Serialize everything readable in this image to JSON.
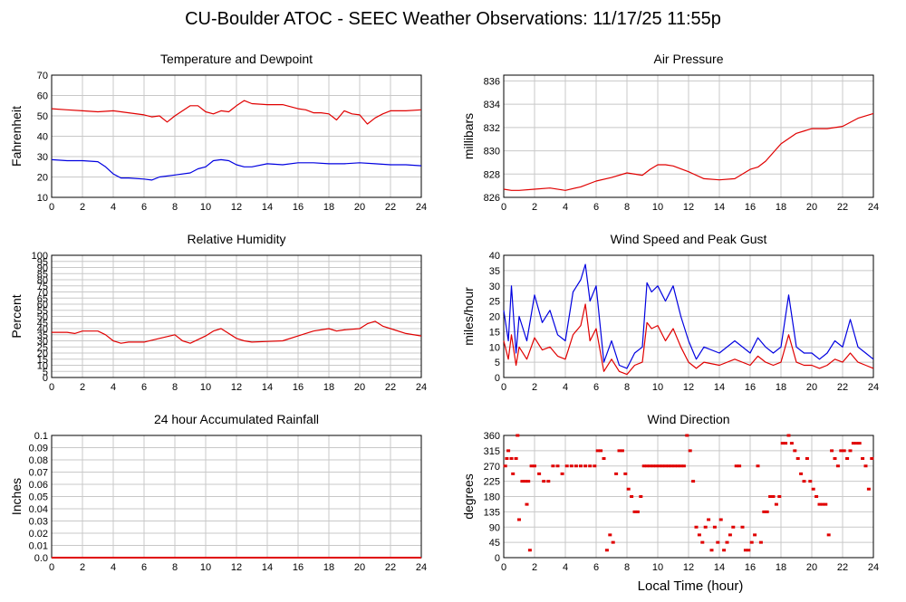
{
  "page_title": "CU-Boulder ATOC - SEEC Weather Observations: 11/17/25 11:55p",
  "x_axis_label": "Local Time (hour)",
  "chart_data": [
    {
      "type": "line",
      "title": "Temperature and Dewpoint",
      "ylabel": "Fahrenheit",
      "xlabel": "",
      "xlim": [
        0,
        24
      ],
      "ylim": [
        10,
        70
      ],
      "x_ticks": [
        0,
        2,
        4,
        6,
        8,
        10,
        12,
        14,
        16,
        18,
        20,
        22,
        24
      ],
      "y_ticks": [
        10,
        20,
        30,
        40,
        50,
        60,
        70
      ],
      "grid": true,
      "series": [
        {
          "color": "#e00000",
          "x": [
            0,
            1,
            2,
            3,
            4,
            5,
            6,
            6.5,
            7,
            7.5,
            8,
            9,
            9.5,
            10,
            10.5,
            11,
            11.5,
            12,
            12.5,
            13,
            14,
            15,
            16,
            16.5,
            17,
            17.5,
            18,
            18.5,
            19,
            19.5,
            20,
            20.5,
            21,
            21.5,
            22,
            23,
            24
          ],
          "y": [
            53.5,
            53,
            52.5,
            52,
            52.5,
            51.5,
            50.5,
            49.5,
            50,
            47,
            50,
            55,
            55,
            52,
            51,
            52.5,
            52,
            55,
            57.5,
            56,
            55.5,
            55.5,
            53.5,
            53,
            51.5,
            51.5,
            51,
            48,
            52.5,
            51,
            50.5,
            46,
            49,
            51,
            52.5,
            52.5,
            53
          ]
        },
        {
          "color": "#0000e0",
          "x": [
            0,
            1,
            2,
            3,
            3.5,
            4,
            4.5,
            5,
            6,
            6.5,
            7,
            8,
            9,
            9.5,
            10,
            10.5,
            11,
            11.5,
            12,
            12.5,
            13,
            14,
            15,
            16,
            17,
            18,
            19,
            20,
            21,
            22,
            23,
            24
          ],
          "y": [
            28.5,
            28,
            28,
            27.5,
            25,
            21.5,
            19.5,
            19.5,
            19,
            18.5,
            20,
            21,
            22,
            24,
            25,
            28,
            28.5,
            28,
            26,
            25,
            25,
            26.5,
            26,
            27,
            27,
            26.5,
            26.5,
            27,
            26.5,
            26,
            26,
            25.5
          ]
        }
      ]
    },
    {
      "type": "line",
      "title": "Air Pressure",
      "ylabel": "millibars",
      "xlabel": "",
      "xlim": [
        0,
        24
      ],
      "ylim": [
        826,
        836.5
      ],
      "x_ticks": [
        0,
        2,
        4,
        6,
        8,
        10,
        12,
        14,
        16,
        18,
        20,
        22,
        24
      ],
      "y_ticks": [
        826,
        828,
        830,
        832,
        834,
        836
      ],
      "grid": true,
      "series": [
        {
          "color": "#e00000",
          "x": [
            0,
            0.5,
            1,
            2,
            3,
            4,
            5,
            6,
            7,
            8,
            9,
            9.5,
            10,
            10.5,
            11,
            12,
            13,
            14,
            15,
            16,
            16.5,
            17,
            18,
            19,
            20,
            21,
            22,
            23,
            24
          ],
          "y": [
            826.7,
            826.6,
            826.6,
            826.7,
            826.8,
            826.6,
            826.9,
            827.4,
            827.7,
            828.1,
            827.9,
            828.4,
            828.8,
            828.8,
            828.7,
            828.2,
            827.6,
            827.5,
            827.6,
            828.4,
            828.6,
            829.1,
            830.6,
            831.5,
            831.9,
            831.9,
            832.1,
            832.8,
            833.2
          ]
        }
      ]
    },
    {
      "type": "line",
      "title": "Relative Humidity",
      "ylabel": "Percent",
      "xlabel": "",
      "xlim": [
        0,
        24
      ],
      "ylim": [
        0,
        100
      ],
      "x_ticks": [
        0,
        2,
        4,
        6,
        8,
        10,
        12,
        14,
        16,
        18,
        20,
        22,
        24
      ],
      "y_ticks": [
        0,
        5,
        10,
        15,
        20,
        25,
        30,
        35,
        40,
        45,
        50,
        55,
        60,
        65,
        70,
        75,
        80,
        85,
        90,
        95,
        100
      ],
      "grid": true,
      "series": [
        {
          "color": "#e00000",
          "x": [
            0,
            1,
            1.5,
            2,
            3,
            3.5,
            4,
            4.5,
            5,
            6,
            7,
            8,
            8.5,
            9,
            10,
            10.5,
            11,
            11.5,
            12,
            12.5,
            13,
            14,
            15,
            16,
            17,
            18,
            18.5,
            19,
            20,
            20.5,
            21,
            21.5,
            22,
            23,
            24
          ],
          "y": [
            37,
            37,
            36,
            38,
            38,
            35,
            30,
            28,
            29,
            29,
            32,
            35,
            30,
            28,
            34,
            38,
            40,
            36,
            32,
            30,
            29,
            29.5,
            30,
            34,
            38,
            40,
            38,
            39,
            40,
            44,
            46,
            42,
            40,
            36,
            34
          ]
        }
      ]
    },
    {
      "type": "line",
      "title": "Wind Speed and Peak Gust",
      "ylabel": "miles/hour",
      "xlabel": "",
      "xlim": [
        0,
        24
      ],
      "ylim": [
        0,
        40
      ],
      "x_ticks": [
        0,
        2,
        4,
        6,
        8,
        10,
        12,
        14,
        16,
        18,
        20,
        22,
        24
      ],
      "y_ticks": [
        0,
        5,
        10,
        15,
        20,
        25,
        30,
        35,
        40
      ],
      "grid": true,
      "series": [
        {
          "color": "#0000e0",
          "x": [
            0,
            0.3,
            0.5,
            0.8,
            1,
            1.5,
            2,
            2.5,
            3,
            3.5,
            4,
            4.5,
            5,
            5.3,
            5.6,
            6,
            6.5,
            7,
            7.5,
            8,
            8.5,
            9,
            9.3,
            9.6,
            10,
            10.5,
            11,
            11.5,
            12,
            12.5,
            13,
            14,
            15,
            16,
            16.5,
            17,
            17.5,
            18,
            18.5,
            19,
            19.5,
            20,
            20.5,
            21,
            21.5,
            22,
            22.5,
            23,
            23.5,
            24
          ],
          "y": [
            22,
            12,
            30,
            8,
            20,
            12,
            27,
            18,
            22,
            14,
            12,
            28,
            32,
            37,
            25,
            30,
            5,
            12,
            4,
            3,
            8,
            10,
            31,
            28,
            30,
            25,
            30,
            20,
            12,
            6,
            10,
            8,
            12,
            8,
            13,
            10,
            8,
            10,
            27,
            10,
            8,
            8,
            6,
            8,
            12,
            10,
            19,
            10,
            8,
            6
          ]
        },
        {
          "color": "#e00000",
          "x": [
            0,
            0.3,
            0.5,
            0.8,
            1,
            1.5,
            2,
            2.5,
            3,
            3.5,
            4,
            4.5,
            5,
            5.3,
            5.6,
            6,
            6.5,
            7,
            7.5,
            8,
            8.5,
            9,
            9.3,
            9.6,
            10,
            10.5,
            11,
            11.5,
            12,
            12.5,
            13,
            14,
            15,
            16,
            16.5,
            17,
            17.5,
            18,
            18.5,
            19,
            19.5,
            20,
            20.5,
            21,
            21.5,
            22,
            22.5,
            23,
            23.5,
            24
          ],
          "y": [
            12,
            6,
            14,
            4,
            10,
            6,
            13,
            9,
            10,
            7,
            6,
            14,
            17,
            24,
            12,
            16,
            2,
            6,
            2,
            1,
            4,
            5,
            18,
            16,
            17,
            12,
            16,
            10,
            5,
            3,
            5,
            4,
            6,
            4,
            7,
            5,
            4,
            5,
            14,
            5,
            4,
            4,
            3,
            4,
            6,
            5,
            8,
            5,
            4,
            3
          ]
        }
      ]
    },
    {
      "type": "line",
      "title": "24 hour Accumulated Rainfall",
      "ylabel": "Inches",
      "xlabel": "",
      "xlim": [
        0,
        24
      ],
      "ylim": [
        0,
        0.1
      ],
      "x_ticks": [
        0,
        2,
        4,
        6,
        8,
        10,
        12,
        14,
        16,
        18,
        20,
        22,
        24
      ],
      "y_ticks": [
        "0.0",
        "0.01",
        "0.02",
        "0.03",
        "0.04",
        "0.05",
        "0.06",
        "0.07",
        "0.08",
        "0.09",
        "0.1"
      ],
      "grid": true,
      "series": [
        {
          "color": "#e00000",
          "x": [
            0,
            24
          ],
          "y": [
            0,
            0
          ]
        }
      ]
    },
    {
      "type": "scatter",
      "title": "Wind Direction",
      "ylabel": "degrees",
      "xlabel": "Local Time (hour)",
      "xlim": [
        0,
        24
      ],
      "ylim": [
        0,
        360
      ],
      "x_ticks": [
        0,
        2,
        4,
        6,
        8,
        10,
        12,
        14,
        16,
        18,
        20,
        22,
        24
      ],
      "y_ticks": [
        0,
        45,
        90,
        135,
        180,
        225,
        270,
        315,
        360
      ],
      "grid": true,
      "series": [
        {
          "color": "#e00000",
          "x": [
            0.1,
            0.2,
            0.3,
            0.5,
            0.6,
            0.8,
            0.9,
            1.0,
            1.2,
            1.4,
            1.5,
            1.6,
            1.7,
            1.8,
            2.0,
            2.3,
            2.6,
            2.9,
            3.2,
            3.5,
            3.8,
            4.1,
            4.4,
            4.7,
            5.0,
            5.3,
            5.6,
            5.9,
            6.1,
            6.3,
            6.5,
            6.7,
            6.9,
            7.1,
            7.3,
            7.5,
            7.7,
            7.9,
            8.1,
            8.3,
            8.5,
            8.7,
            8.9,
            9.1,
            9.3,
            9.5,
            9.7,
            9.9,
            10.1,
            10.3,
            10.5,
            10.7,
            10.9,
            11.1,
            11.3,
            11.5,
            11.7,
            11.9,
            12.1,
            12.3,
            12.5,
            12.7,
            12.9,
            13.1,
            13.3,
            13.5,
            13.7,
            13.9,
            14.1,
            14.3,
            14.5,
            14.7,
            14.9,
            15.1,
            15.3,
            15.5,
            15.7,
            15.9,
            16.1,
            16.3,
            16.5,
            16.7,
            16.9,
            17.1,
            17.3,
            17.5,
            17.7,
            17.9,
            18.1,
            18.3,
            18.5,
            18.7,
            18.9,
            19.1,
            19.3,
            19.5,
            19.7,
            19.9,
            20.1,
            20.3,
            20.5,
            20.7,
            20.9,
            21.1,
            21.3,
            21.5,
            21.7,
            21.9,
            22.1,
            22.3,
            22.5,
            22.7,
            22.9,
            23.1,
            23.3,
            23.5,
            23.7,
            23.9
          ],
          "y": [
            270,
            292,
            315,
            292,
            247,
            292,
            360,
            112,
            225,
            225,
            157,
            225,
            22,
            270,
            270,
            247,
            225,
            225,
            270,
            270,
            247,
            270,
            270,
            270,
            270,
            270,
            270,
            270,
            315,
            315,
            292,
            22,
            67,
            45,
            247,
            315,
            315,
            247,
            202,
            180,
            135,
            135,
            180,
            270,
            270,
            270,
            270,
            270,
            270,
            270,
            270,
            270,
            270,
            270,
            270,
            270,
            270,
            360,
            315,
            225,
            90,
            67,
            45,
            90,
            112,
            22,
            90,
            45,
            112,
            22,
            45,
            67,
            90,
            270,
            270,
            90,
            22,
            22,
            45,
            67,
            270,
            45,
            135,
            135,
            180,
            180,
            157,
            180,
            337,
            337,
            360,
            337,
            315,
            292,
            247,
            225,
            292,
            225,
            202,
            180,
            157,
            157,
            157,
            67,
            315,
            292,
            270,
            315,
            315,
            292,
            315,
            337,
            337,
            337,
            292,
            270,
            202,
            292
          ]
        }
      ]
    }
  ]
}
